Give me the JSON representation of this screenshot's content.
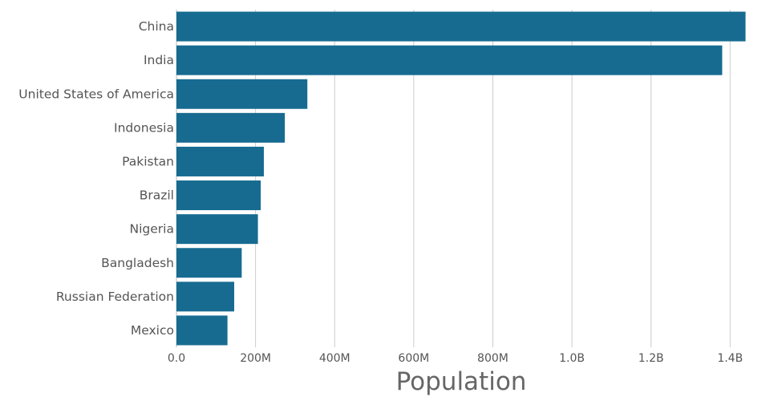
{
  "chart_data": {
    "type": "bar",
    "orientation": "horizontal",
    "categories": [
      "China",
      "India",
      "United States of America",
      "Indonesia",
      "Pakistan",
      "Brazil",
      "Nigeria",
      "Bangladesh",
      "Russian Federation",
      "Mexico"
    ],
    "values": [
      1439000000,
      1380000000,
      331000000,
      274000000,
      221000000,
      213000000,
      206000000,
      165000000,
      146000000,
      129000000
    ],
    "xlabel": "Population",
    "ylabel": "",
    "xlim": [
      0,
      1440000000
    ],
    "x_ticks": [
      0,
      200000000,
      400000000,
      600000000,
      800000000,
      1000000000,
      1200000000,
      1400000000
    ],
    "x_tick_labels": [
      "0.0",
      "200M",
      "400M",
      "600M",
      "800M",
      "1.0B",
      "1.2B",
      "1.4B"
    ],
    "grid": "vertical",
    "bar_color": "#176b91"
  }
}
